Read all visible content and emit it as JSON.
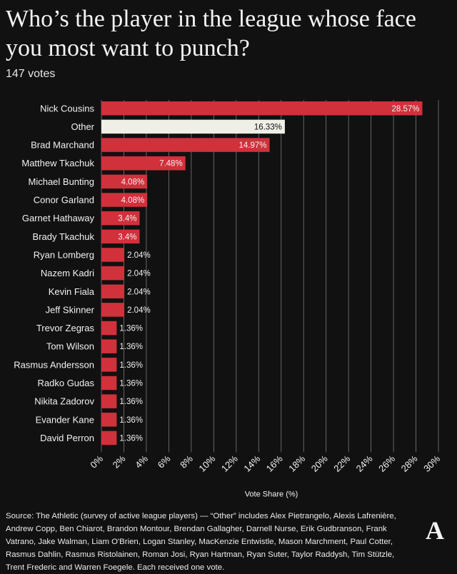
{
  "title": "Who’s the player in the league whose face you most want to punch?",
  "subtitle": "147 votes",
  "source": "Source: The Athletic (survey of active league players) — “Other” includes Alex Pietrangelo, Alexis Lafrenière, Andrew Copp, Ben Chiarot, Brandon Montour, Brendan Gallagher, Darnell Nurse, Erik Gudbranson, Frank Vatrano, Jake Walman, Liam O'Brien, Logan Stanley, MacKenzie Entwistle, Mason Marchment, Paul Cotter, Rasmus Dahlin, Rasmus Ristolainen, Roman Josi, Ryan Hartman, Ryan Suter, Taylor Raddysh, Tim Stützle, Trent Frederic and Warren Foegele. Each received one vote.",
  "logo": "A",
  "colors": {
    "background": "#111111",
    "bar": "#d0313b",
    "other_bar": "#efefe8",
    "grid": "#7a7a7a",
    "text": "#f2f2f2"
  },
  "chart_data": {
    "type": "bar",
    "orientation": "horizontal",
    "title": "Who’s the player in the league whose face you most want to punch?",
    "xlabel": "Vote Share (%)",
    "xlim": [
      0,
      30
    ],
    "xticks": [
      0,
      2,
      4,
      6,
      8,
      10,
      12,
      14,
      16,
      18,
      20,
      22,
      24,
      26,
      28,
      30
    ],
    "xtick_labels": [
      "0%",
      "2%",
      "4%",
      "6%",
      "8%",
      "10%",
      "12%",
      "14%",
      "16%",
      "18%",
      "20%",
      "22%",
      "24%",
      "26%",
      "28%",
      "30%"
    ],
    "grid": true,
    "categories": [
      "Nick Cousins",
      "Other",
      "Brad Marchand",
      "Matthew Tkachuk",
      "Michael Bunting",
      "Conor Garland",
      "Garnet Hathaway",
      "Brady Tkachuk",
      "Ryan Lomberg",
      "Nazem Kadri",
      "Kevin Fiala",
      "Jeff Skinner",
      "Trevor Zegras",
      "Tom Wilson",
      "Rasmus Andersson",
      "Radko Gudas",
      "Nikita Zadorov",
      "Evander Kane",
      "David Perron"
    ],
    "values": [
      28.57,
      16.33,
      14.97,
      7.48,
      4.08,
      4.08,
      3.4,
      3.4,
      2.04,
      2.04,
      2.04,
      2.04,
      1.36,
      1.36,
      1.36,
      1.36,
      1.36,
      1.36,
      1.36
    ],
    "value_labels": [
      "28.57%",
      "16.33%",
      "14.97%",
      "7.48%",
      "4.08%",
      "4.08%",
      "3.4%",
      "3.4%",
      "2.04%",
      "2.04%",
      "2.04%",
      "2.04%",
      "1.36%",
      "1.36%",
      "1.36%",
      "1.36%",
      "1.36%",
      "1.36%",
      "1.36%"
    ],
    "highlight": [
      "Other"
    ]
  }
}
